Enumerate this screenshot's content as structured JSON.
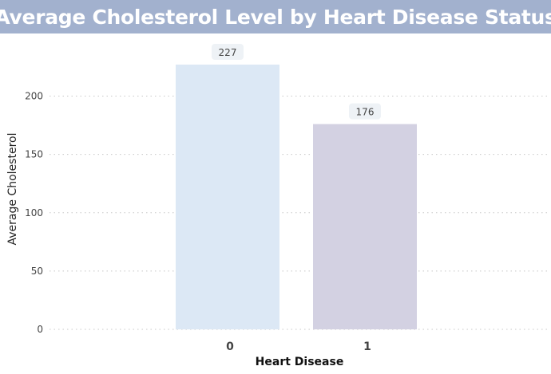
{
  "chart_data": {
    "type": "bar",
    "title": "Average Cholesterol Level by Heart Disease Status",
    "xlabel": "Heart Disease",
    "ylabel": "Average Cholesterol",
    "categories": [
      "0",
      "1"
    ],
    "values": [
      227,
      176
    ],
    "data_labels": [
      "227",
      "176"
    ],
    "bar_colors": [
      "#dce8f5",
      "#d3d1e2"
    ],
    "ylim": [
      0,
      240
    ],
    "yticks": [
      0,
      50,
      100,
      150,
      200
    ],
    "grid": "horizontal dotted",
    "legend": "none"
  }
}
